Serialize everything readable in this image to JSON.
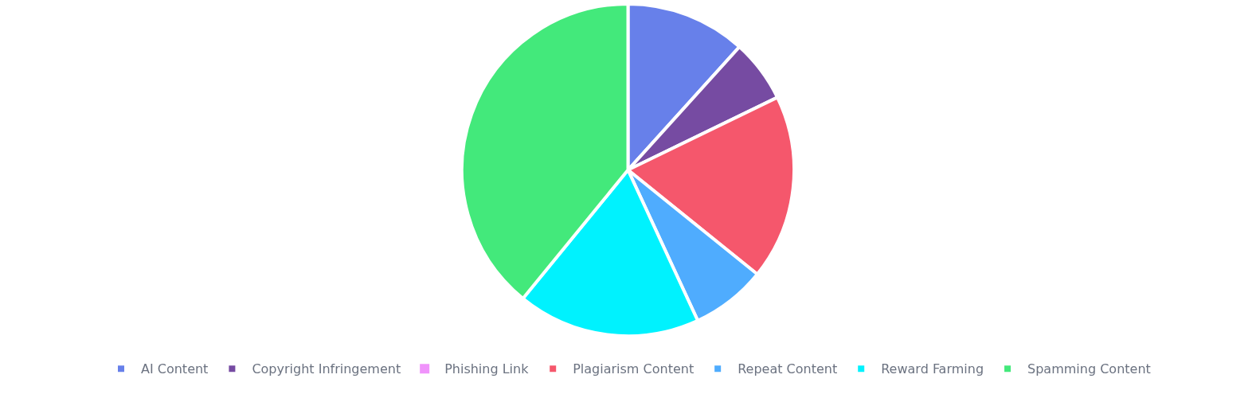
{
  "chart_data": {
    "type": "pie",
    "categories": [
      "AI Content",
      "Copyright Infringement",
      "Phishing Link",
      "Plagiarism Content",
      "Repeat Content",
      "Reward Farming",
      "Spamming Content"
    ],
    "values": [
      11.7,
      6.1,
      0,
      18.0,
      7.3,
      17.8,
      39.1
    ],
    "colors": [
      "#6780ea",
      "#764ba2",
      "#f093fb",
      "#f5576c",
      "#4facfe",
      "#00f2fe",
      "#43e97b"
    ],
    "legend": "bottom"
  }
}
